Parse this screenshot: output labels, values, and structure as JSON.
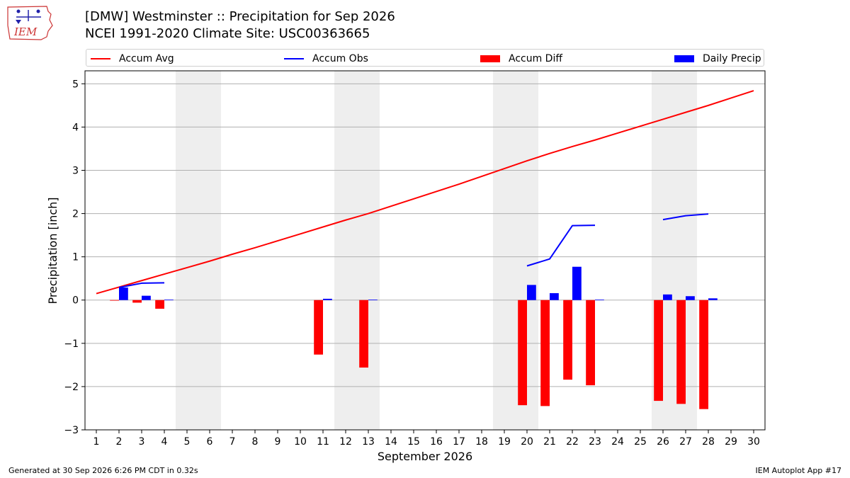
{
  "header": {
    "title_line1": "[DMW] Westminster :: Precipitation for Sep 2026",
    "title_line2": "NCEI 1991-2020 Climate Site: USC00363665",
    "logo_text": "IEM"
  },
  "footer": {
    "left": "Generated at 30 Sep 2026 6:26 PM CDT in 0.32s",
    "right": "IEM Autoplot App #17"
  },
  "colors": {
    "accum_avg": "#ff0000",
    "accum_obs": "#0000ff",
    "accum_diff": "#ff0000",
    "daily_precip": "#0000ff",
    "weekend_shade": "#eeeeee",
    "grid": "#b0b0b0"
  },
  "chart_data": {
    "type": "bar",
    "xlabel": "September 2026",
    "ylabel": "Precipitation [inch]",
    "xlim": [
      0.5,
      30.5
    ],
    "ylim": [
      -3.0,
      5.3
    ],
    "yticks": [
      -3,
      -2,
      -1,
      0,
      1,
      2,
      3,
      4,
      5
    ],
    "ytick_labels": [
      "−3",
      "−2",
      "−1",
      "0",
      "1",
      "2",
      "3",
      "4",
      "5"
    ],
    "days": [
      1,
      2,
      3,
      4,
      5,
      6,
      7,
      8,
      9,
      10,
      11,
      12,
      13,
      14,
      15,
      16,
      17,
      18,
      19,
      20,
      21,
      22,
      23,
      24,
      25,
      26,
      27,
      28,
      29,
      30
    ],
    "grid": "horizontal",
    "legend_position": "top",
    "weekend_shading": [
      [
        4.5,
        6.5
      ],
      [
        11.5,
        13.5
      ],
      [
        18.5,
        20.5
      ],
      [
        25.5,
        27.5
      ]
    ],
    "series": [
      {
        "name": "Accum Avg",
        "kind": "line",
        "values": [
          0.15,
          0.3,
          0.45,
          0.6,
          0.75,
          0.9,
          1.06,
          1.21,
          1.37,
          1.53,
          1.69,
          1.85,
          2.0,
          2.17,
          2.34,
          2.51,
          2.68,
          2.86,
          3.04,
          3.22,
          3.39,
          3.55,
          3.7,
          3.86,
          4.02,
          4.18,
          4.34,
          4.5,
          4.67,
          4.84
        ]
      },
      {
        "name": "Accum Obs",
        "kind": "line",
        "values": [
          null,
          0.29,
          0.39,
          0.4,
          null,
          null,
          null,
          null,
          null,
          null,
          null,
          null,
          null,
          null,
          null,
          null,
          null,
          null,
          null,
          0.79,
          0.95,
          1.72,
          1.73,
          null,
          null,
          1.86,
          1.95,
          1.99,
          null,
          null
        ]
      },
      {
        "name": "Accum Diff",
        "kind": "bar",
        "values": [
          null,
          -0.01,
          -0.06,
          -0.2,
          null,
          null,
          null,
          null,
          null,
          null,
          -1.26,
          null,
          -1.56,
          null,
          null,
          null,
          null,
          null,
          null,
          -2.43,
          -2.45,
          -1.84,
          -1.97,
          null,
          null,
          -2.33,
          -2.4,
          -2.52,
          null,
          null
        ]
      },
      {
        "name": "Daily Precip",
        "kind": "bar",
        "values": [
          null,
          0.29,
          0.1,
          0.01,
          null,
          null,
          null,
          null,
          null,
          null,
          0.03,
          null,
          0.01,
          null,
          null,
          null,
          null,
          null,
          null,
          0.35,
          0.16,
          0.77,
          0.01,
          null,
          null,
          0.13,
          0.09,
          0.04,
          null,
          null
        ]
      }
    ]
  }
}
